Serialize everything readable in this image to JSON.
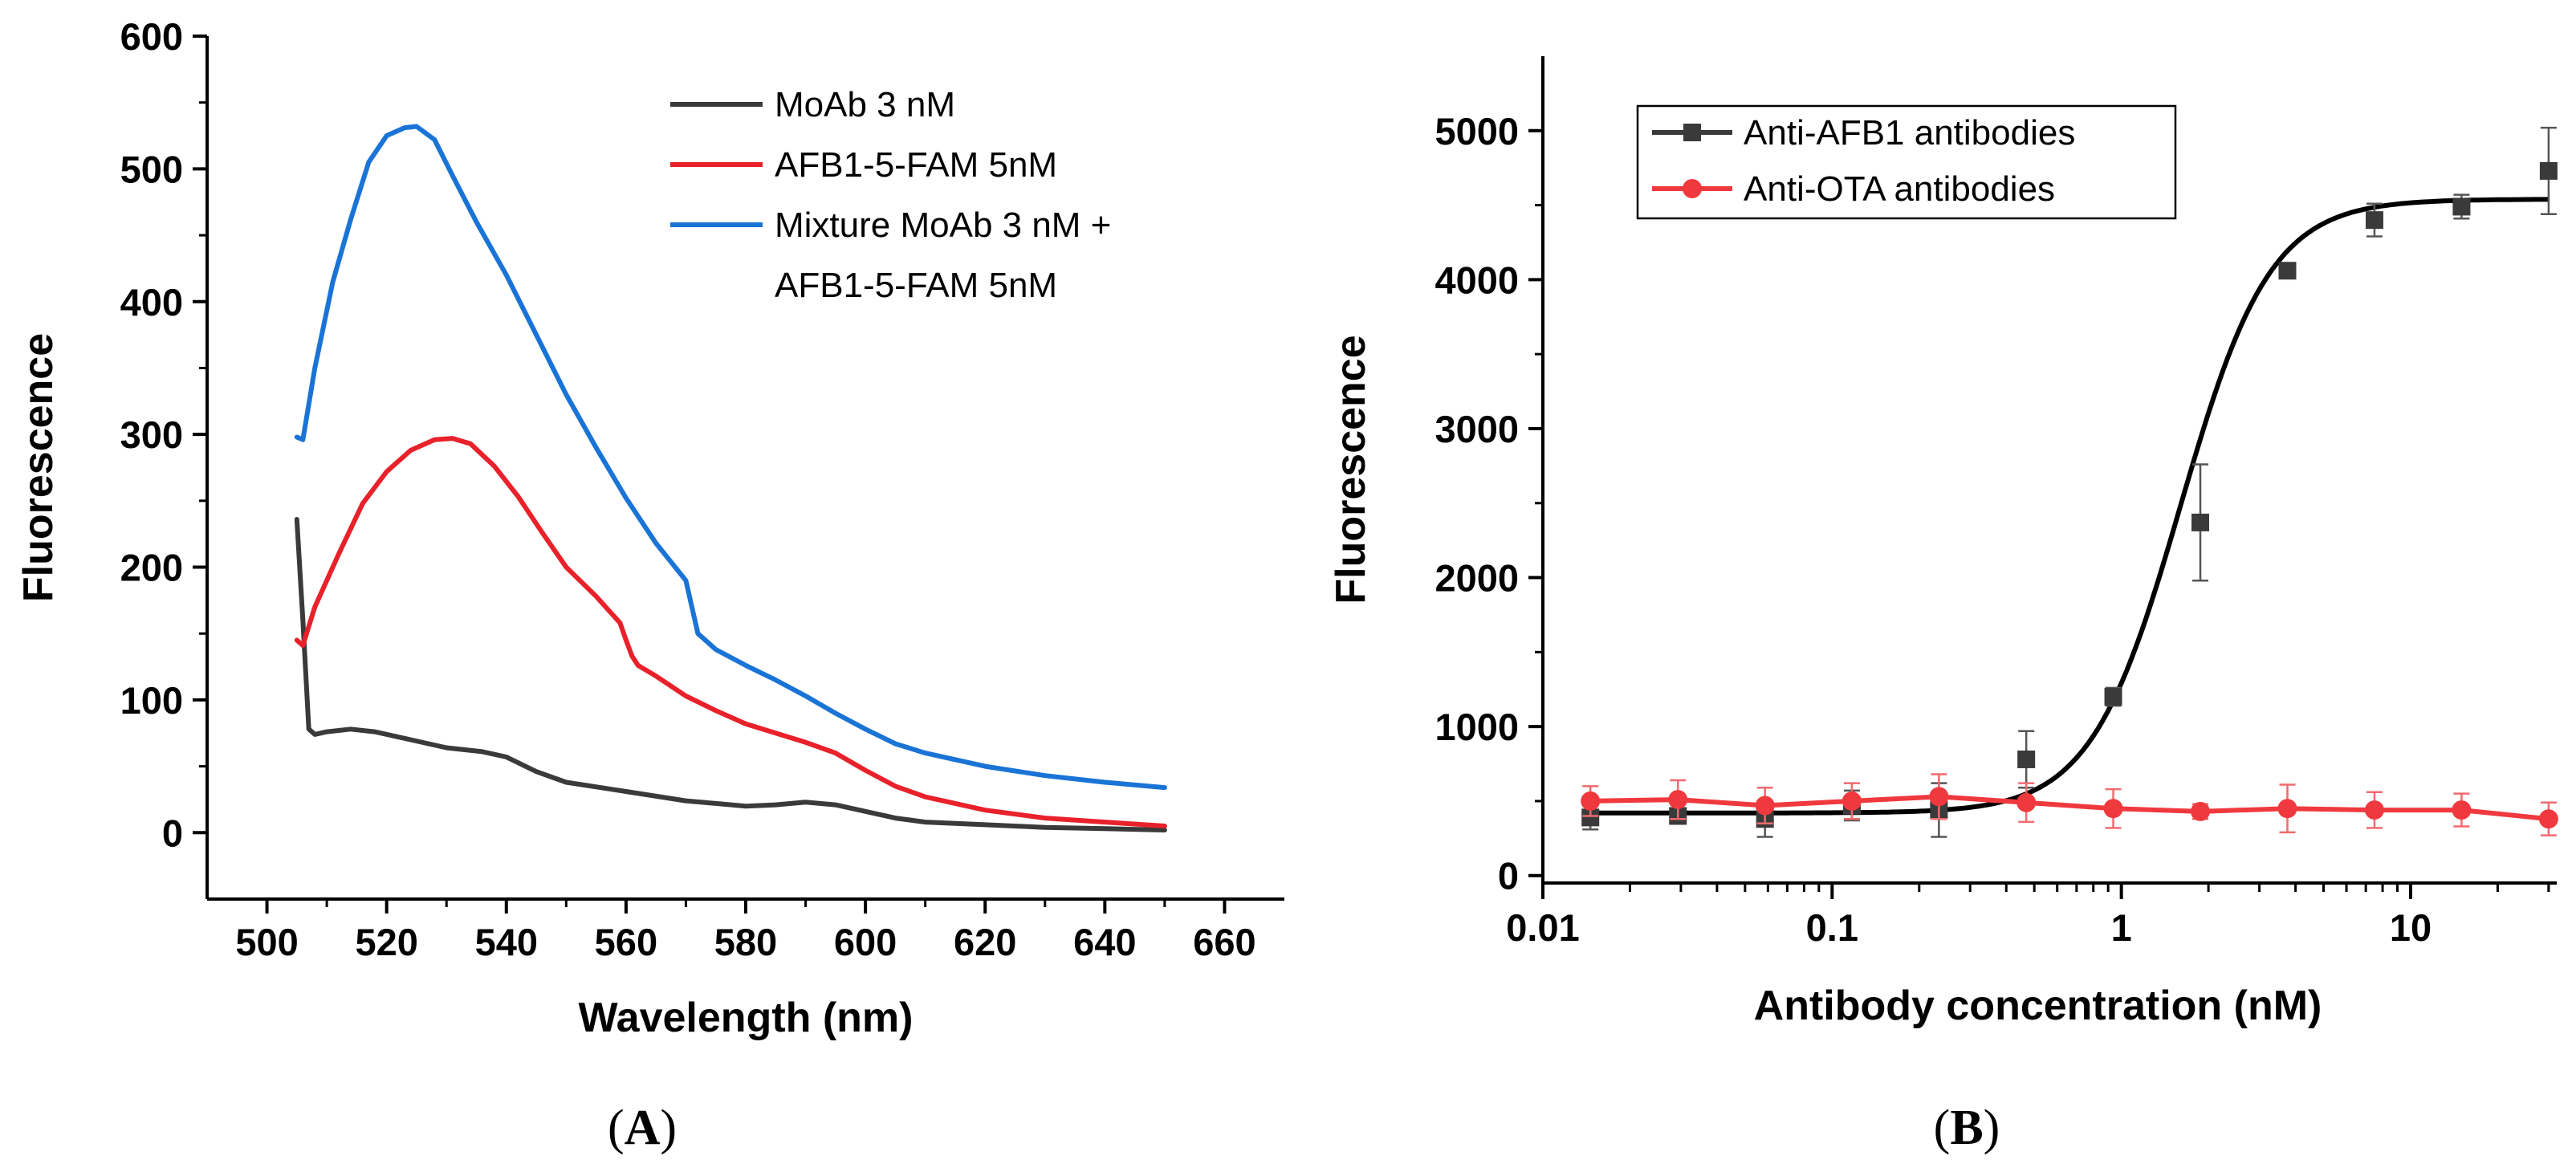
{
  "figure": {
    "panels": [
      {
        "label_open": "(",
        "label_letter": "A",
        "label_close": ")"
      },
      {
        "label_open": "(",
        "label_letter": "B",
        "label_close": ")"
      }
    ]
  },
  "chart_data": [
    {
      "type": "line",
      "panel": "A",
      "title": "",
      "xlabel": "Wavelength (nm)",
      "ylabel": "Fluorescence",
      "xlim": [
        490,
        670
      ],
      "ylim": [
        -50,
        600
      ],
      "xticks": [
        500,
        520,
        540,
        560,
        580,
        600,
        620,
        640,
        660
      ],
      "yticks": [
        0,
        100,
        200,
        300,
        400,
        500,
        600
      ],
      "legend_position": "top-right",
      "series": [
        {
          "name": "MoAb 3 nM",
          "color": "#3a3a3a",
          "x": [
            505,
            506,
            507,
            508,
            510,
            514,
            518,
            524,
            530,
            536,
            540,
            545,
            550,
            560,
            570,
            580,
            585,
            590,
            595,
            600,
            605,
            610,
            620,
            630,
            640,
            650
          ],
          "y": [
            236,
            160,
            78,
            74,
            76,
            78,
            76,
            70,
            64,
            61,
            57,
            46,
            38,
            31,
            24,
            20,
            21,
            23,
            21,
            16,
            11,
            8,
            6,
            4,
            3,
            2
          ]
        },
        {
          "name": "AFB1-5-FAM 5nM",
          "color": "#e8212a",
          "x": [
            505,
            506,
            508,
            512,
            516,
            520,
            524,
            528,
            531,
            534,
            538,
            542,
            546,
            550,
            555,
            559,
            560,
            561,
            562,
            565,
            570,
            575,
            580,
            585,
            590,
            595,
            600,
            605,
            610,
            620,
            630,
            640,
            650
          ],
          "y": [
            145,
            141,
            170,
            210,
            248,
            272,
            288,
            296,
            297,
            293,
            276,
            253,
            226,
            200,
            178,
            158,
            145,
            133,
            126,
            118,
            103,
            92,
            82,
            75,
            68,
            60,
            47,
            35,
            27,
            17,
            11,
            8,
            5
          ]
        },
        {
          "name": "Mixture MoAb 3 nM + AFB1-5-FAM 5nM",
          "color": "#1a74d6",
          "x": [
            505,
            506,
            508,
            511,
            514,
            517,
            520,
            523,
            525,
            528,
            531,
            535,
            540,
            545,
            550,
            555,
            560,
            565,
            570,
            571,
            572,
            575,
            580,
            585,
            590,
            595,
            600,
            605,
            610,
            620,
            630,
            640,
            650
          ],
          "y": [
            298,
            296,
            350,
            415,
            462,
            505,
            525,
            531,
            532,
            522,
            495,
            460,
            420,
            375,
            330,
            290,
            252,
            218,
            190,
            170,
            150,
            138,
            126,
            115,
            103,
            90,
            78,
            67,
            60,
            50,
            43,
            38,
            34
          ]
        }
      ]
    },
    {
      "type": "scatter",
      "panel": "B",
      "title": "",
      "xlabel": "Antibody concentration (nM)",
      "ylabel": "Fluorescence",
      "xscale": "log",
      "xlim": [
        0.01,
        32
      ],
      "ylim": [
        -50,
        5500
      ],
      "xticks": [
        0.01,
        0.1,
        1,
        10
      ],
      "xtick_labels": [
        "0.01",
        "0.1",
        "1",
        "10"
      ],
      "yticks": [
        0,
        1000,
        2000,
        3000,
        4000,
        5000
      ],
      "legend_position": "top-left",
      "series": [
        {
          "name": "Anti-AFB1 antibodies",
          "color": "#3a3a3a",
          "marker": "square",
          "x": [
            0.0146,
            0.0293,
            0.0586,
            0.117,
            0.234,
            0.469,
            0.9375,
            1.875,
            3.75,
            7.5,
            15,
            30
          ],
          "y": [
            390,
            400,
            380,
            470,
            440,
            780,
            1200,
            2370,
            4060,
            4400,
            4490,
            4730
          ],
          "err": [
            80,
            50,
            120,
            100,
            180,
            190,
            60,
            390,
            40,
            110,
            80,
            290
          ],
          "fit": {
            "model": "sigmoid-logistic",
            "bottom": 420,
            "top": 4540,
            "ec50": 1.6,
            "hill": 2.8,
            "x_range": [
              0.0146,
              30
            ]
          }
        },
        {
          "name": "Anti-OTA antibodies",
          "color": "#f0393e",
          "marker": "circle",
          "x": [
            0.0146,
            0.0293,
            0.0586,
            0.117,
            0.234,
            0.469,
            0.9375,
            1.875,
            3.75,
            7.5,
            15,
            30
          ],
          "y": [
            500,
            510,
            470,
            500,
            530,
            490,
            450,
            430,
            450,
            440,
            440,
            380
          ],
          "err": [
            100,
            130,
            120,
            120,
            150,
            130,
            130,
            50,
            160,
            120,
            110,
            110
          ]
        }
      ]
    }
  ]
}
